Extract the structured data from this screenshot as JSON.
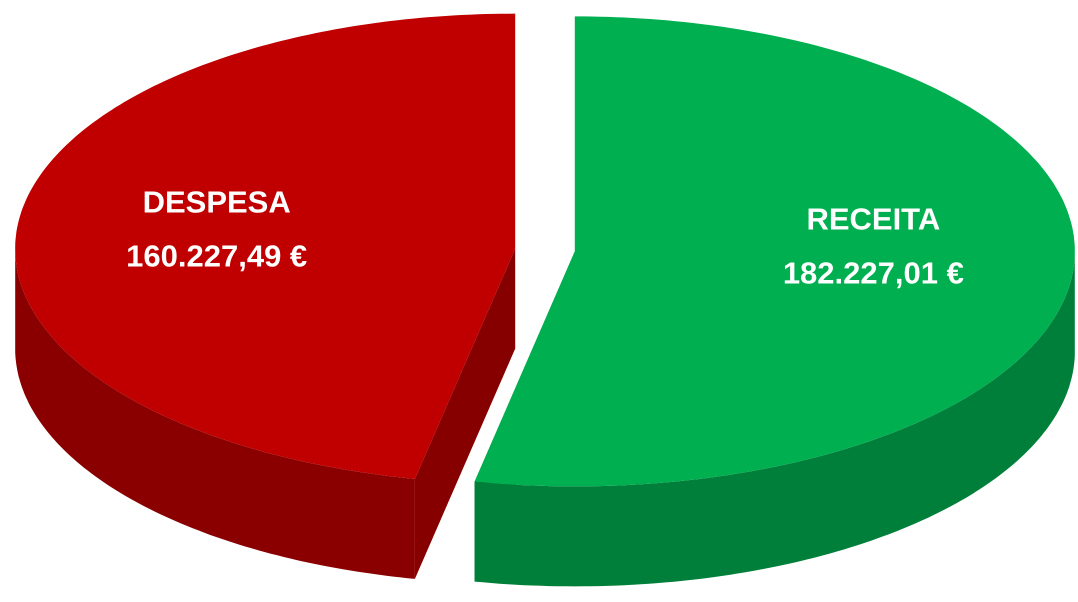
{
  "chart_data": {
    "type": "pie",
    "categories": [
      "DESPESA",
      "RECEITA"
    ],
    "values": [
      160227.49,
      182227.01
    ],
    "value_labels": [
      "160.227,49 €",
      "182.227,01 €"
    ],
    "colors": [
      "#c00000",
      "#00b050"
    ]
  }
}
